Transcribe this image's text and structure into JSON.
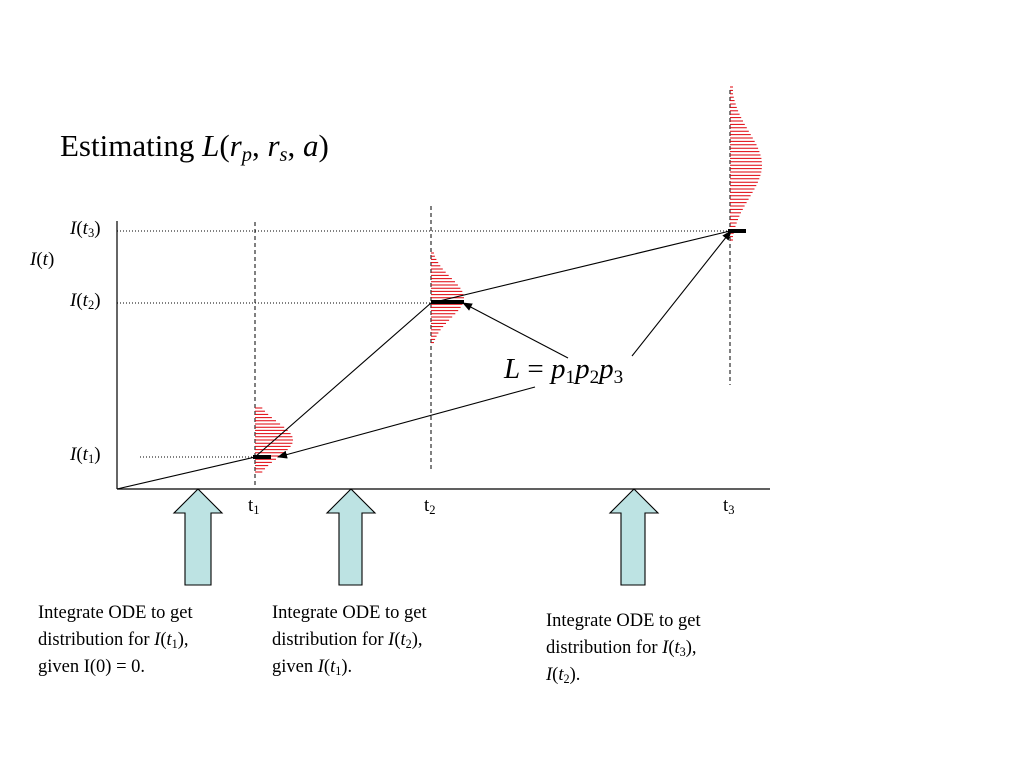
{
  "title": {
    "prefix": "Estimating ",
    "func": "L",
    "open": "(",
    "r1": "r",
    "r1_sub": "p",
    "sep1": ", ",
    "r2": "r",
    "r2_sub": "s",
    "sep2": ", ",
    "a": "a",
    "close": ")"
  },
  "y_axis": {
    "label_func": "I",
    "label_open": "(",
    "label_var": "t",
    "label_close": ")"
  },
  "y_ticks": [
    {
      "func": "I",
      "open": "(",
      "var": "t",
      "sub": "3",
      "close": ")"
    },
    {
      "func": "I",
      "open": "(",
      "var": "t",
      "sub": "2",
      "close": ")"
    },
    {
      "func": "I",
      "open": "(",
      "var": "t",
      "sub": "1",
      "close": ")"
    }
  ],
  "x_ticks": [
    {
      "base": "t",
      "sub": "1"
    },
    {
      "base": "t",
      "sub": "2"
    },
    {
      "base": "t",
      "sub": "3"
    }
  ],
  "formula": {
    "lhs": "L",
    "eq": " = ",
    "p1": "p",
    "p1_sub": "1",
    "p2": "p",
    "p2_sub": "2",
    "p3": "p",
    "p3_sub": "3"
  },
  "captions": [
    {
      "line1": "Integrate ODE to get",
      "line2_prefix": "distribution for ",
      "line2_func": "I",
      "line2_open": "(",
      "line2_var": "t",
      "line2_sub": "1",
      "line2_close": "),",
      "line3_prefix": "given I(0) = 0."
    },
    {
      "line1": "Integrate ODE to get",
      "line2_prefix": "distribution for ",
      "line2_func": "I",
      "line2_open": "(",
      "line2_var": "t",
      "line2_sub": "2",
      "line2_close": "),",
      "line3_prefix": "given ",
      "line3_func": "I",
      "line3_open": "(",
      "line3_var": "t",
      "line3_sub": "1",
      "line3_close": ")."
    },
    {
      "line1": "Integrate ODE to get",
      "line2_prefix": "distribution for ",
      "line2_func": "I",
      "line2_open": "(",
      "line2_var": "t",
      "line2_sub": "3",
      "line2_close": "),",
      "line3_func": "I",
      "line3_open": "(",
      "line3_var": "t",
      "line3_sub": "2",
      "line3_close": ")."
    }
  ],
  "colors": {
    "distribution": "#e0000a",
    "arrow_fill": "#bde3e3",
    "line": "#000000"
  }
}
